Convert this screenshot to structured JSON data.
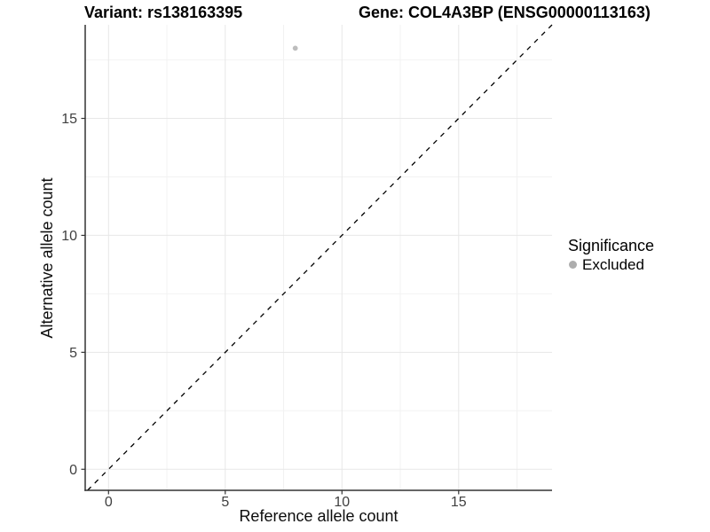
{
  "chart_data": {
    "type": "scatter",
    "title_left": "Variant: rs138163395",
    "title_right": "Gene: COL4A3BP (ENSG00000113163)",
    "xlabel": "Reference allele count",
    "ylabel": "Alternative allele count",
    "xlim": [
      -1,
      19
    ],
    "ylim": [
      -0.9,
      19
    ],
    "xticks": [
      0,
      5,
      10,
      15
    ],
    "yticks": [
      0,
      5,
      10,
      15
    ],
    "xticks_minor": [
      2.5,
      7.5,
      12.5,
      17.5
    ],
    "yticks_minor": [
      2.5,
      7.5,
      12.5,
      17.5
    ],
    "grid": "major+minor",
    "series": [
      {
        "name": "Excluded",
        "color": "#bdbdbd",
        "points": [
          {
            "x": 8,
            "y": 18
          }
        ]
      }
    ],
    "reference_line": {
      "kind": "identity y=x",
      "style": "dashed",
      "color": "#000000"
    },
    "legend": {
      "title": "Significance",
      "position": "right",
      "entries": [
        {
          "label": "Excluded",
          "color": "#adadad"
        }
      ]
    },
    "colors": {
      "background": "#ffffff",
      "grid_major": "#e7e7e7",
      "grid_minor": "#f2f2f2",
      "axis_line": "#333333",
      "tick_mark": "#333333",
      "tick_text": "#404040",
      "point": "#bdbdbd"
    },
    "style": {
      "point_radius": 2.9,
      "tick_length": 4.5,
      "tick_font_size": 16,
      "dash_pattern": "5.5 6"
    }
  }
}
